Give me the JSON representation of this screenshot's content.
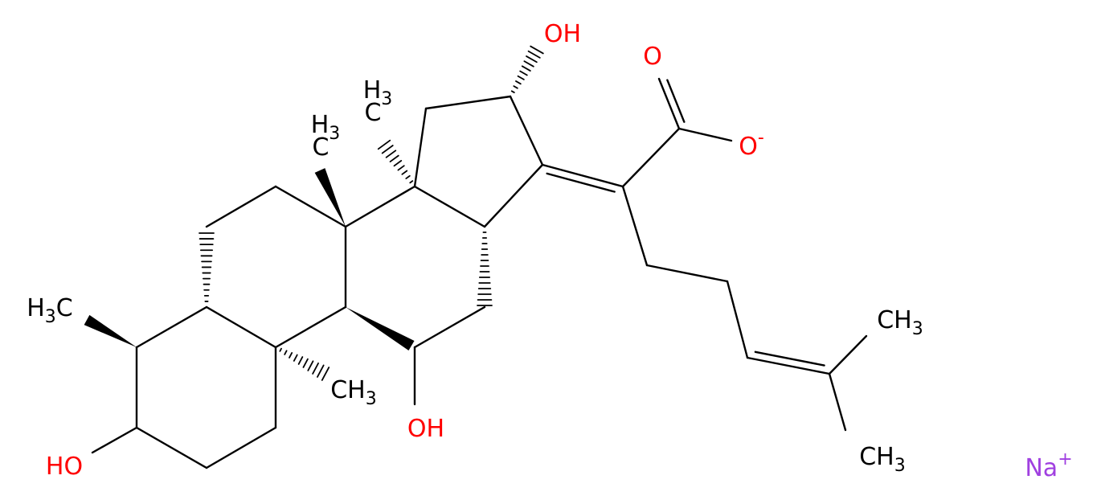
{
  "atoms": [
    {
      "text": "HO"
    },
    {
      "text": "H",
      "sub": "3",
      "after": "C"
    },
    {
      "text": "CH",
      "sub": "3"
    },
    {
      "text": "OH"
    },
    {
      "text": "H",
      "sub": "3",
      "below": "C"
    },
    {
      "text": "H",
      "sub": "3",
      "below": "C"
    },
    {
      "text": "OH"
    },
    {
      "text": "O"
    },
    {
      "text": "O",
      "sup": "-"
    },
    {
      "text": "CH",
      "sub": "3"
    },
    {
      "text": "CH",
      "sub": "3"
    },
    {
      "text": "Na",
      "sup": "+"
    }
  ]
}
